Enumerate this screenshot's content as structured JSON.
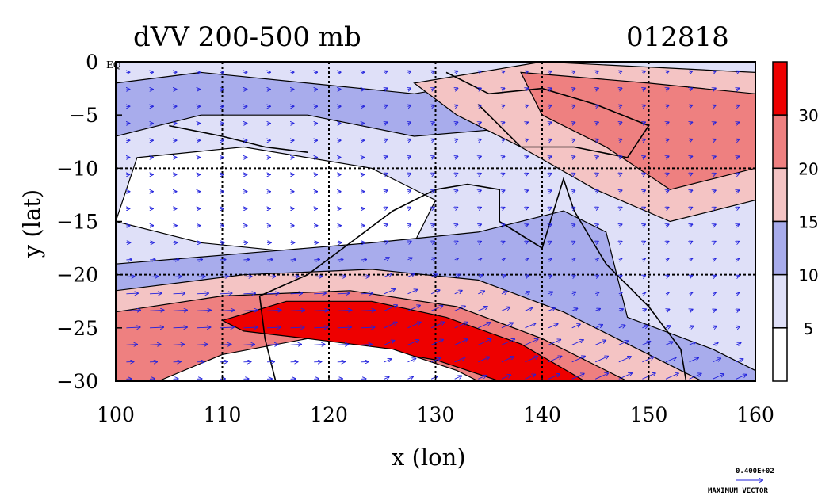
{
  "chart_data": {
    "type": "heatmap",
    "title": "dVV 200-500 mb",
    "date_label": "012818",
    "xlabel": "x (lon)",
    "ylabel": "y (lat)",
    "xlim": [
      100,
      160
    ],
    "ylim": [
      -30,
      0
    ],
    "x_ticks": [
      "100",
      "110",
      "120",
      "130",
      "140",
      "150",
      "160"
    ],
    "y_ticks": [
      "0",
      "−5",
      "−10",
      "−15",
      "−20",
      "−25",
      "−30"
    ],
    "corner_label": "EQ",
    "grid": true,
    "colorbar": {
      "placement": "right",
      "labels": [
        "5",
        "10",
        "15",
        "20",
        "30"
      ],
      "colors": [
        "#ffffff",
        "#dfe0f8",
        "#a8acec",
        "#f4c4c4",
        "#ee8080",
        "#ee0000"
      ]
    },
    "jet": {
      "description_values": "max band ~ lat -22 to -30, lon 110-145",
      "core_lon": [
        110,
        115,
        120,
        125,
        130,
        135,
        140,
        145
      ],
      "core_lat": [
        -24.5,
        -23.5,
        -23.5,
        -24.5,
        -25.5,
        -27,
        -29,
        -30.5
      ]
    },
    "vector_legend": {
      "value": "0.400E+02",
      "label": "MAXIMUM VECTOR",
      "color": "#1a1aee"
    }
  }
}
